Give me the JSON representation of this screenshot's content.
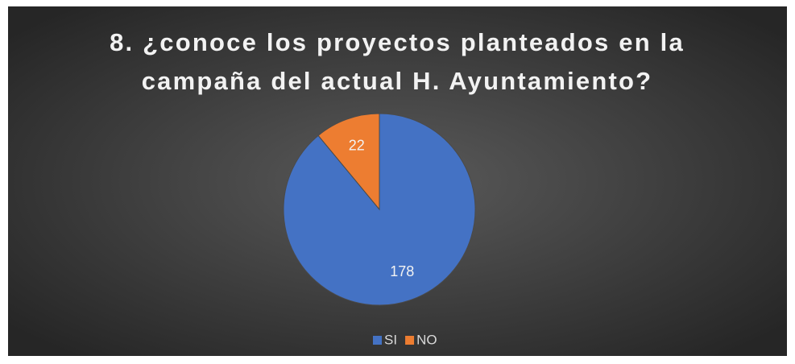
{
  "chart_data": {
    "type": "pie",
    "title": [
      "8. ¿conoce los proyectos planteados en la",
      "campaña del actual H. Ayuntamiento?"
    ],
    "categories": [
      "SI",
      "NO"
    ],
    "values": [
      178,
      22
    ],
    "colors": [
      "#4472c4",
      "#ed7d31"
    ],
    "legend": "bottom"
  }
}
